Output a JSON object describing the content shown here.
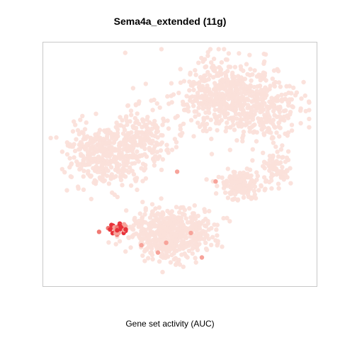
{
  "chart_data": {
    "type": "scatter",
    "title": "Sema4a_extended (11g)",
    "xlabel": "Gene set activity (AUC)",
    "ylabel": "",
    "legend": "none",
    "grid": false,
    "axes_ticks": false,
    "colors": {
      "low": "#fbe0da",
      "mid": "#f7a39a",
      "high": "#e8323a",
      "frame": "#c8c8c8"
    },
    "clusters": [
      {
        "region": "top-right",
        "center": [
          0.66,
          0.22
        ],
        "spread": [
          0.14,
          0.12
        ],
        "count": 520,
        "activity": "low"
      },
      {
        "region": "upper-right-band",
        "center": [
          0.82,
          0.28
        ],
        "spread": [
          0.1,
          0.12
        ],
        "count": 220,
        "activity": "low"
      },
      {
        "region": "left-middle",
        "center": [
          0.22,
          0.46
        ],
        "spread": [
          0.11,
          0.1
        ],
        "count": 380,
        "activity": "low"
      },
      {
        "region": "center-left",
        "center": [
          0.36,
          0.4
        ],
        "spread": [
          0.08,
          0.12
        ],
        "count": 200,
        "activity": "low"
      },
      {
        "region": "right-middle",
        "center": [
          0.72,
          0.58
        ],
        "spread": [
          0.08,
          0.05
        ],
        "count": 160,
        "activity": "low"
      },
      {
        "region": "right-small",
        "center": [
          0.86,
          0.52
        ],
        "spread": [
          0.04,
          0.06
        ],
        "count": 70,
        "activity": "low"
      },
      {
        "region": "bottom-center",
        "center": [
          0.47,
          0.78
        ],
        "spread": [
          0.12,
          0.08
        ],
        "count": 560,
        "activity": "low"
      },
      {
        "region": "bottom-left-hotspot",
        "center": [
          0.27,
          0.76
        ],
        "spread": [
          0.03,
          0.02
        ],
        "count": 45,
        "activity": "high"
      }
    ],
    "highlights": [
      {
        "x": 0.49,
        "y": 0.53,
        "activity": "mid"
      },
      {
        "x": 0.63,
        "y": 0.57,
        "activity": "mid"
      },
      {
        "x": 0.45,
        "y": 0.82,
        "activity": "mid"
      },
      {
        "x": 0.54,
        "y": 0.78,
        "activity": "mid"
      },
      {
        "x": 0.36,
        "y": 0.83,
        "activity": "mid"
      },
      {
        "x": 0.58,
        "y": 0.88,
        "activity": "mid"
      },
      {
        "x": 0.42,
        "y": 0.86,
        "activity": "mid"
      }
    ]
  }
}
